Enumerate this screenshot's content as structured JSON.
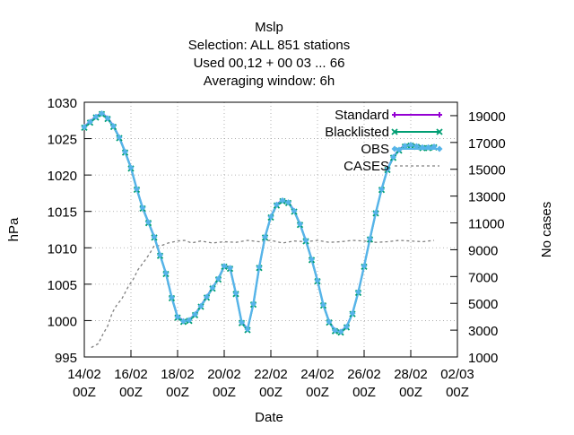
{
  "chart_data": {
    "type": "line",
    "title_lines": [
      "Mslp",
      "Selection: ALL     851 stations",
      "Used  00,12  + 00 03 ... 66",
      "Averaging window:  6h"
    ],
    "xlabel": "Date",
    "ylabel": "hPa",
    "y2label": "No cases",
    "x_ticks": [
      {
        "l1": "14/02",
        "l2": "00Z"
      },
      {
        "l1": "16/02",
        "l2": "00Z"
      },
      {
        "l1": "18/02",
        "l2": "00Z"
      },
      {
        "l1": "20/02",
        "l2": "00Z"
      },
      {
        "l1": "22/02",
        "l2": "00Z"
      },
      {
        "l1": "24/02",
        "l2": "00Z"
      },
      {
        "l1": "26/02",
        "l2": "00Z"
      },
      {
        "l1": "28/02",
        "l2": "00Z"
      },
      {
        "l1": "02/03",
        "l2": "00Z"
      }
    ],
    "x_tick_days": [
      0,
      2,
      4,
      6,
      8,
      10,
      12,
      14,
      16
    ],
    "x_range_days": [
      0,
      16
    ],
    "ylim": [
      995,
      1030
    ],
    "y_ticks": [
      995,
      1000,
      1005,
      1010,
      1015,
      1020,
      1025,
      1030
    ],
    "y2lim": [
      1000,
      20000
    ],
    "y2_ticks": [
      1000,
      3000,
      5000,
      7000,
      9000,
      11000,
      13000,
      15000,
      17000,
      19000
    ],
    "grid": true,
    "legend": [
      {
        "name": "Standard",
        "color": "#9400d3",
        "dash": false,
        "marker": "plus"
      },
      {
        "name": "Blacklisted",
        "color": "#009e73",
        "dash": false,
        "marker": "cross"
      },
      {
        "name": "OBS",
        "color": "#56b4e9",
        "dash": false,
        "marker": "diamond"
      },
      {
        "name": "CASES",
        "color": "#808080",
        "dash": true,
        "marker": "none"
      }
    ],
    "legend_position": "top-right",
    "pressure_keypoints": [
      [
        0.0,
        1026.6
      ],
      [
        0.5,
        1028.0
      ],
      [
        0.7,
        1028.6
      ],
      [
        1.0,
        1027.8
      ],
      [
        1.3,
        1026.5
      ],
      [
        1.6,
        1024.5
      ],
      [
        2.0,
        1021.0
      ],
      [
        2.3,
        1017.5
      ],
      [
        2.6,
        1014.5
      ],
      [
        2.9,
        1012.5
      ],
      [
        3.2,
        1009.5
      ],
      [
        3.5,
        1006.5
      ],
      [
        3.8,
        1002.5
      ],
      [
        4.0,
        1000.5
      ],
      [
        4.3,
        999.8
      ],
      [
        4.6,
        1000.2
      ],
      [
        4.9,
        1001.5
      ],
      [
        5.2,
        1003.0
      ],
      [
        5.5,
        1004.5
      ],
      [
        5.8,
        1006.0
      ],
      [
        6.0,
        1007.5
      ],
      [
        6.2,
        1007.8
      ],
      [
        6.4,
        1005.5
      ],
      [
        6.6,
        1002.0
      ],
      [
        6.8,
        999.0
      ],
      [
        7.0,
        998.8
      ],
      [
        7.3,
        1003.0
      ],
      [
        7.6,
        1009.5
      ],
      [
        7.9,
        1013.5
      ],
      [
        8.2,
        1015.8
      ],
      [
        8.5,
        1016.5
      ],
      [
        8.8,
        1016.2
      ],
      [
        9.1,
        1014.5
      ],
      [
        9.4,
        1012.0
      ],
      [
        9.7,
        1009.0
      ],
      [
        10.0,
        1005.5
      ],
      [
        10.3,
        1001.5
      ],
      [
        10.6,
        999.0
      ],
      [
        10.9,
        998.3
      ],
      [
        11.2,
        998.8
      ],
      [
        11.5,
        1001.0
      ],
      [
        11.8,
        1004.5
      ],
      [
        12.1,
        1009.0
      ],
      [
        12.4,
        1013.5
      ],
      [
        12.7,
        1017.5
      ],
      [
        13.0,
        1020.8
      ],
      [
        13.3,
        1022.8
      ],
      [
        13.6,
        1023.8
      ],
      [
        13.9,
        1024.2
      ],
      [
        14.2,
        1024.0
      ],
      [
        14.5,
        1023.8
      ],
      [
        14.8,
        1023.8
      ],
      [
        15.0,
        1023.9
      ]
    ],
    "cases_keypoints": [
      [
        0.3,
        1700
      ],
      [
        0.6,
        2000
      ],
      [
        0.8,
        2700
      ],
      [
        1.0,
        3300
      ],
      [
        1.2,
        4300
      ],
      [
        1.4,
        4900
      ],
      [
        1.6,
        5300
      ],
      [
        1.9,
        6300
      ],
      [
        2.1,
        6800
      ],
      [
        2.3,
        7500
      ],
      [
        2.6,
        8200
      ],
      [
        2.8,
        8700
      ],
      [
        3.0,
        9300
      ],
      [
        3.3,
        9300
      ],
      [
        3.6,
        9500
      ],
      [
        4.0,
        9650
      ],
      [
        4.3,
        9700
      ],
      [
        4.6,
        9500
      ],
      [
        5.0,
        9650
      ],
      [
        5.5,
        9500
      ],
      [
        6.0,
        9600
      ],
      [
        6.5,
        9550
      ],
      [
        7.0,
        9700
      ],
      [
        7.5,
        9600
      ],
      [
        8.0,
        9700
      ],
      [
        8.5,
        9500
      ],
      [
        9.0,
        9650
      ],
      [
        9.5,
        9600
      ],
      [
        10.0,
        9700
      ],
      [
        10.5,
        9550
      ],
      [
        11.0,
        9600
      ],
      [
        11.5,
        9700
      ],
      [
        12.0,
        9650
      ],
      [
        12.5,
        9550
      ],
      [
        13.0,
        9600
      ],
      [
        13.5,
        9700
      ],
      [
        14.0,
        9650
      ],
      [
        14.5,
        9600
      ],
      [
        15.0,
        9700
      ]
    ]
  }
}
